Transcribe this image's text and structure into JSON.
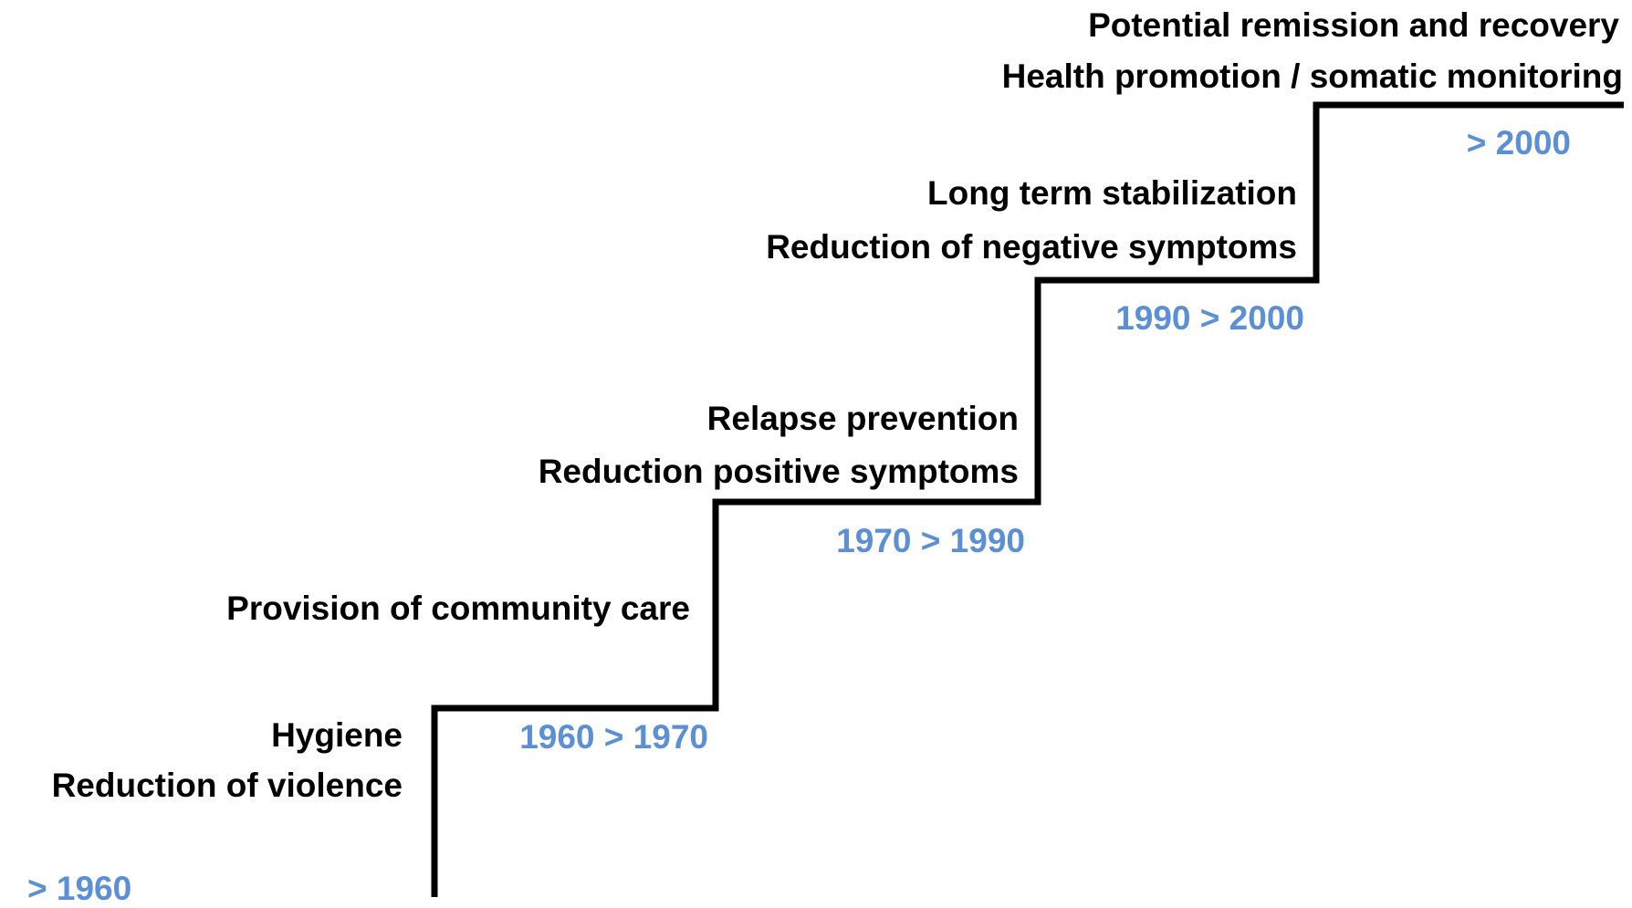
{
  "steps": [
    {
      "labels": [
        "Hygiene",
        "Reduction of violence"
      ],
      "period": "> 1960"
    },
    {
      "labels": [
        "Provision of community care"
      ],
      "period": "1960 > 1970"
    },
    {
      "labels": [
        "Relapse prevention",
        "Reduction positive symptoms"
      ],
      "period": "1970 > 1990"
    },
    {
      "labels": [
        "Long term stabilization",
        "Reduction of negative symptoms"
      ],
      "period": "1990 > 2000"
    },
    {
      "labels": [
        "Potential remission and recovery",
        "Health promotion / somatic monitoring"
      ],
      "period": "> 2000"
    }
  ]
}
